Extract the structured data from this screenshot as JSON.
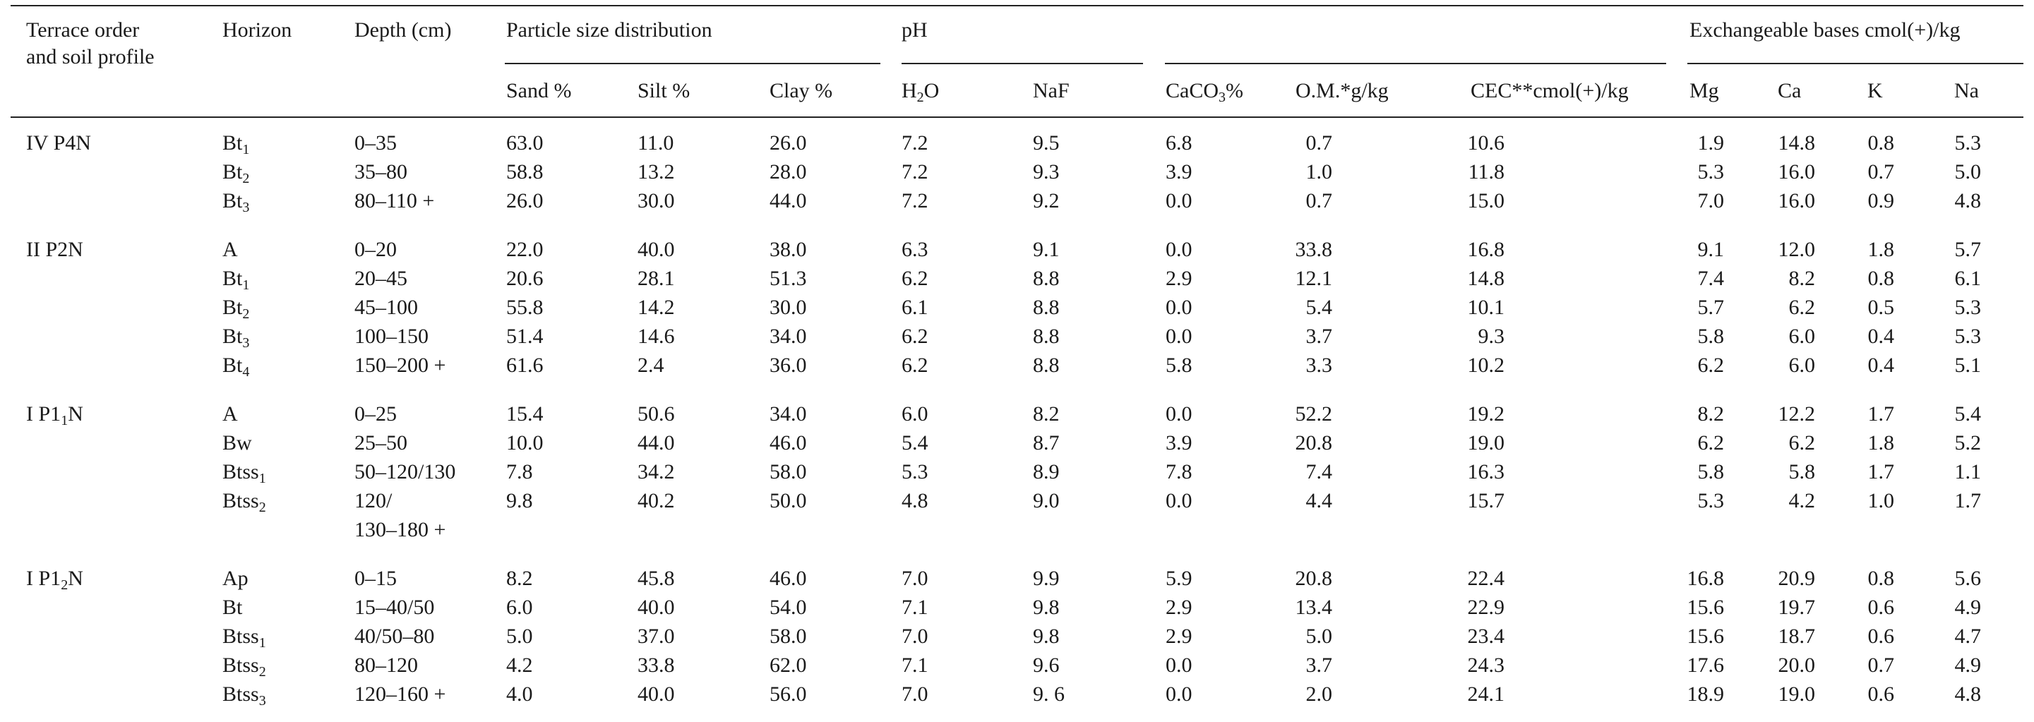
{
  "headers": {
    "terrace_line1": "Terrace order",
    "terrace_line2": "and soil profile",
    "horizon": "Horizon",
    "depth": "Depth (cm)",
    "psd": "Particle size distribution",
    "ph": "pH",
    "exch": "Exchangeable bases cmol(+)/kg",
    "sand": "Sand %",
    "silt": "Silt %",
    "clay": "Clay %",
    "h2o_main": "H",
    "h2o_sub": "2",
    "h2o_tail": "O",
    "naf": "NaF",
    "caco3_main": "CaCO",
    "caco3_sub": "3",
    "caco3_tail": "%",
    "om": "O.M.*g/kg",
    "cec": "CEC**cmol(+)/kg",
    "mg": "Mg",
    "ca": "Ca",
    "k": "K",
    "na": "Na"
  },
  "groups": [
    {
      "profile": "IV P4N",
      "rows": [
        {
          "hz": "Bt",
          "hz_sub": "1",
          "depth": "0–35",
          "sand": "63.0",
          "silt": "11.0",
          "clay": "26.0",
          "h2o": "7.2",
          "naf": "9.5",
          "caco3": "6.8",
          "om": "0.7",
          "cec": "10.6",
          "mg": "1.9",
          "ca": "14.8",
          "k": "0.8",
          "na": "5.3"
        },
        {
          "hz": "Bt",
          "hz_sub": "2",
          "depth": "35–80",
          "sand": "58.8",
          "silt": "13.2",
          "clay": "28.0",
          "h2o": "7.2",
          "naf": "9.3",
          "caco3": "3.9",
          "om": "1.0",
          "cec": "11.8",
          "mg": "5.3",
          "ca": "16.0",
          "k": "0.7",
          "na": "5.0"
        },
        {
          "hz": "Bt",
          "hz_sub": "3",
          "depth": "80–110 +",
          "sand": "26.0",
          "silt": "30.0",
          "clay": "44.0",
          "h2o": "7.2",
          "naf": "9.2",
          "caco3": "0.0",
          "om": "0.7",
          "cec": "15.0",
          "mg": "7.0",
          "ca": "16.0",
          "k": "0.9",
          "na": "4.8"
        }
      ]
    },
    {
      "profile": "II P2N",
      "rows": [
        {
          "hz": "A",
          "hz_sub": "",
          "depth": "0–20",
          "sand": "22.0",
          "silt": "40.0",
          "clay": "38.0",
          "h2o": "6.3",
          "naf": "9.1",
          "caco3": "0.0",
          "om": "33.8",
          "cec": "16.8",
          "mg": "9.1",
          "ca": "12.0",
          "k": "1.8",
          "na": "5.7"
        },
        {
          "hz": "Bt",
          "hz_sub": "1",
          "depth": "20–45",
          "sand": "20.6",
          "silt": "28.1",
          "clay": "51.3",
          "h2o": "6.2",
          "naf": "8.8",
          "caco3": "2.9",
          "om": "12.1",
          "cec": "14.8",
          "mg": "7.4",
          "ca": "8.2",
          "k": "0.8",
          "na": "6.1"
        },
        {
          "hz": "Bt",
          "hz_sub": "2",
          "depth": "45–100",
          "sand": "55.8",
          "silt": "14.2",
          "clay": "30.0",
          "h2o": "6.1",
          "naf": "8.8",
          "caco3": "0.0",
          "om": "5.4",
          "cec": "10.1",
          "mg": "5.7",
          "ca": "6.2",
          "k": "0.5",
          "na": "5.3"
        },
        {
          "hz": "Bt",
          "hz_sub": "3",
          "depth": "100–150",
          "sand": "51.4",
          "silt": "14.6",
          "clay": "34.0",
          "h2o": "6.2",
          "naf": "8.8",
          "caco3": "0.0",
          "om": "3.7",
          "cec": "9.3",
          "mg": "5.8",
          "ca": "6.0",
          "k": "0.4",
          "na": "5.3"
        },
        {
          "hz": "Bt",
          "hz_sub": "4",
          "depth": "150–200 +",
          "sand": "61.6",
          "silt": "2.4",
          "clay": "36.0",
          "h2o": "6.2",
          "naf": "8.8",
          "caco3": "5.8",
          "om": "3.3",
          "cec": "10.2",
          "mg": "6.2",
          "ca": "6.0",
          "k": "0.4",
          "na": "5.1"
        }
      ]
    },
    {
      "profile": "I P1",
      "profile_sub": "1",
      "profile_tail": "N",
      "rows": [
        {
          "hz": "A",
          "hz_sub": "",
          "depth": "0–25",
          "sand": "15.4",
          "silt": "50.6",
          "clay": "34.0",
          "h2o": "6.0",
          "naf": "8.2",
          "caco3": "0.0",
          "om": "52.2",
          "cec": "19.2",
          "mg": "8.2",
          "ca": "12.2",
          "k": "1.7",
          "na": "5.4"
        },
        {
          "hz": "Bw",
          "hz_sub": "",
          "depth": "25–50",
          "sand": "10.0",
          "silt": "44.0",
          "clay": "46.0",
          "h2o": "5.4",
          "naf": "8.7",
          "caco3": "3.9",
          "om": "20.8",
          "cec": "19.0",
          "mg": "6.2",
          "ca": "6.2",
          "k": "1.8",
          "na": "5.2"
        },
        {
          "hz": "Btss",
          "hz_sub": "1",
          "depth": "50–120/130",
          "sand": "7.8",
          "silt": "34.2",
          "clay": "58.0",
          "h2o": "5.3",
          "naf": "8.9",
          "caco3": "7.8",
          "om": "7.4",
          "cec": "16.3",
          "mg": "5.8",
          "ca": "5.8",
          "k": "1.7",
          "na": "1.1"
        },
        {
          "hz": "Btss",
          "hz_sub": "2",
          "depth": "120/",
          "depth2": "130–180 +",
          "sand": "9.8",
          "silt": "40.2",
          "clay": "50.0",
          "h2o": "4.8",
          "naf": "9.0",
          "caco3": "0.0",
          "om": "4.4",
          "cec": "15.7",
          "mg": "5.3",
          "ca": "4.2",
          "k": "1.0",
          "na": "1.7"
        }
      ]
    },
    {
      "profile": "I P1",
      "profile_sub": "2",
      "profile_tail": "N",
      "rows": [
        {
          "hz": "Ap",
          "hz_sub": "",
          "depth": "0–15",
          "sand": "8.2",
          "silt": "45.8",
          "clay": "46.0",
          "h2o": "7.0",
          "naf": "9.9",
          "caco3": "5.9",
          "om": "20.8",
          "cec": "22.4",
          "mg": "16.8",
          "ca": "20.9",
          "k": "0.8",
          "na": "5.6"
        },
        {
          "hz": "Bt",
          "hz_sub": "",
          "depth": "15–40/50",
          "sand": "6.0",
          "silt": "40.0",
          "clay": "54.0",
          "h2o": "7.1",
          "naf": "9.8",
          "caco3": "2.9",
          "om": "13.4",
          "cec": "22.9",
          "mg": "15.6",
          "ca": "19.7",
          "k": "0.6",
          "na": "4.9"
        },
        {
          "hz": "Btss",
          "hz_sub": "1",
          "depth": "40/50–80",
          "sand": "5.0",
          "silt": "37.0",
          "clay": "58.0",
          "h2o": "7.0",
          "naf": "9.8",
          "caco3": "2.9",
          "om": "5.0",
          "cec": "23.4",
          "mg": "15.6",
          "ca": "18.7",
          "k": "0.6",
          "na": "4.7"
        },
        {
          "hz": "Btss",
          "hz_sub": "2",
          "depth": "80–120",
          "sand": "4.2",
          "silt": "33.8",
          "clay": "62.0",
          "h2o": "7.1",
          "naf": "9.6",
          "caco3": "0.0",
          "om": "3.7",
          "cec": "24.3",
          "mg": "17.6",
          "ca": "20.0",
          "k": "0.7",
          "na": "4.9"
        },
        {
          "hz": "Btss",
          "hz_sub": "3",
          "depth": "120–160 +",
          "sand": "4.0",
          "silt": "40.0",
          "clay": "56.0",
          "h2o": "7.0",
          "naf": "9. 6",
          "caco3": "0.0",
          "om": "2.0",
          "cec": "24.1",
          "mg": "18.9",
          "ca": "19.0",
          "k": "0.6",
          "na": "4.8"
        }
      ]
    }
  ]
}
